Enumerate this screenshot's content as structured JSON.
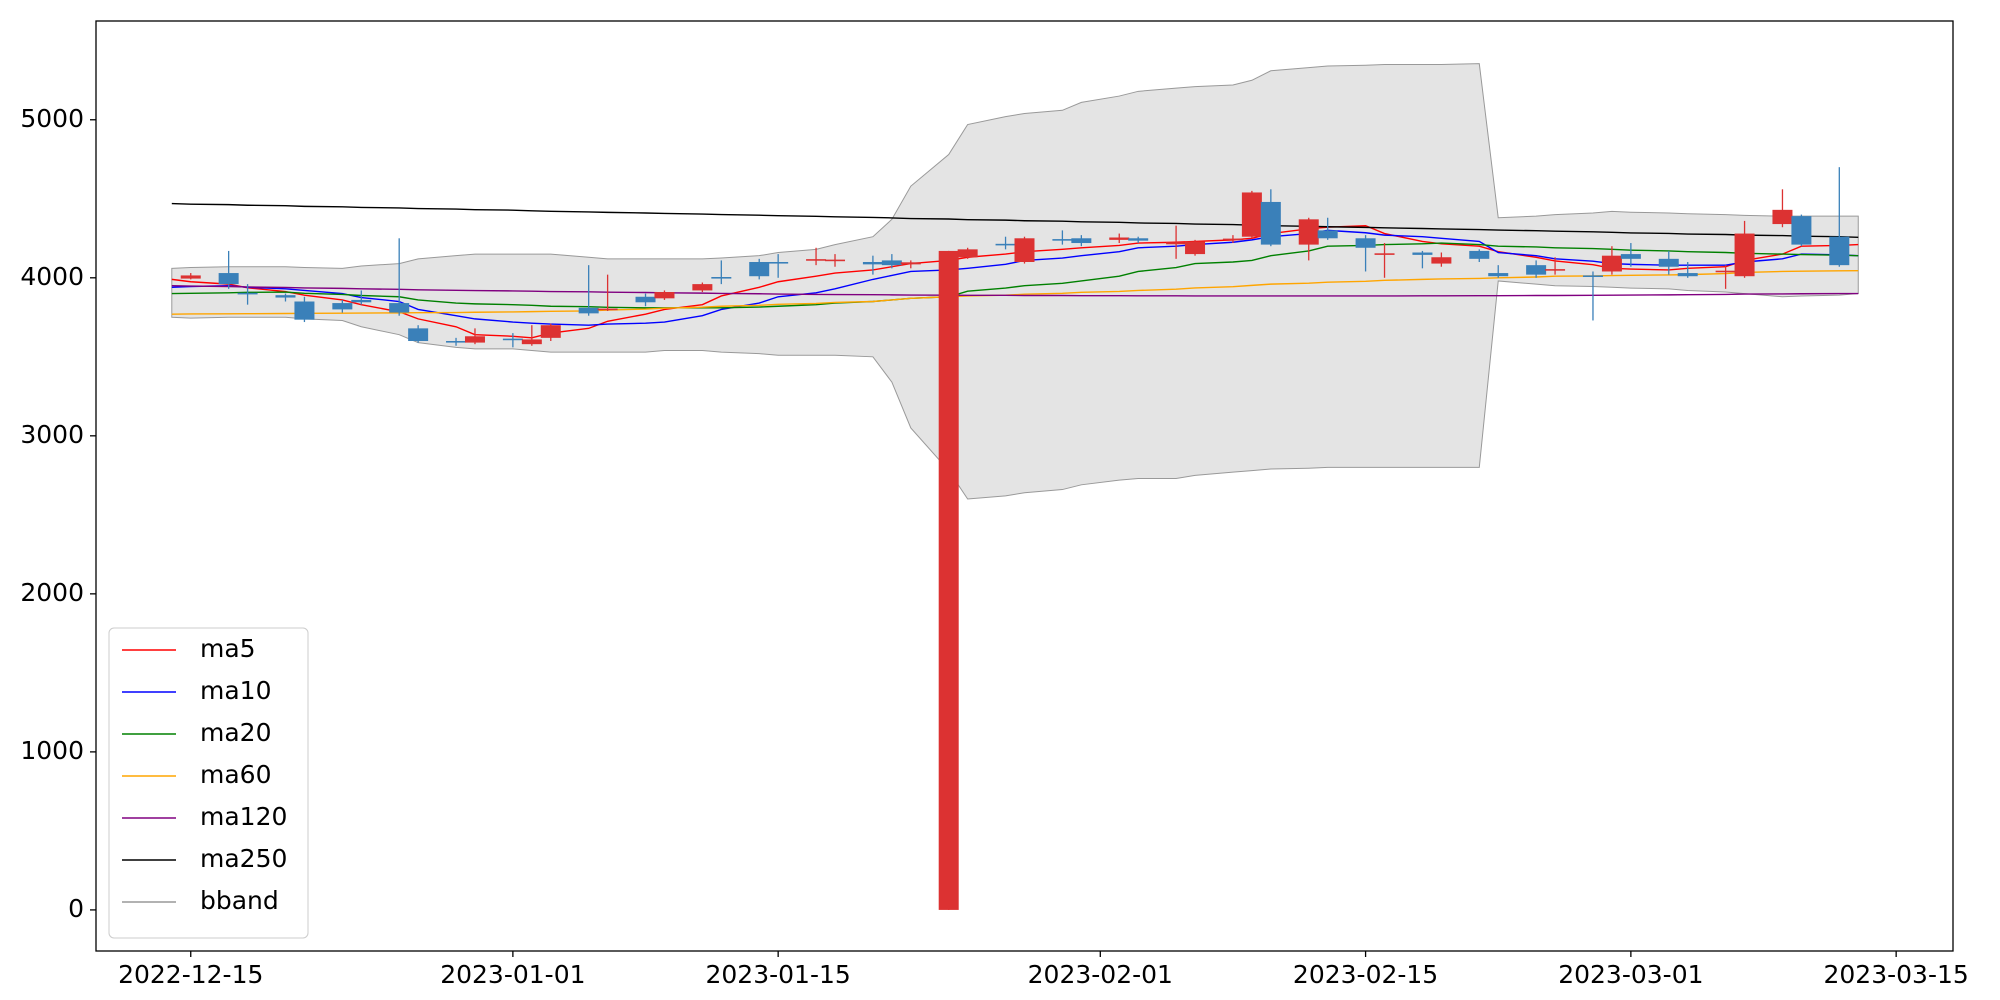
{
  "chart_data": {
    "type": "candlestick",
    "x": [
      "2022-12-14",
      "2022-12-15",
      "2022-12-17",
      "2022-12-18",
      "2022-12-20",
      "2022-12-21",
      "2022-12-23",
      "2022-12-24",
      "2022-12-26",
      "2022-12-27",
      "2022-12-29",
      "2022-12-30",
      "2023-01-01",
      "2023-01-02",
      "2023-01-03",
      "2023-01-05",
      "2023-01-06",
      "2023-01-08",
      "2023-01-09",
      "2023-01-11",
      "2023-01-12",
      "2023-01-14",
      "2023-01-15",
      "2023-01-17",
      "2023-01-18",
      "2023-01-20",
      "2023-01-21",
      "2023-01-22",
      "2023-01-24",
      "2023-01-25",
      "2023-01-27",
      "2023-01-28",
      "2023-01-30",
      "2023-01-31",
      "2023-02-02",
      "2023-02-03",
      "2023-02-05",
      "2023-02-06",
      "2023-02-08",
      "2023-02-09",
      "2023-02-10",
      "2023-02-12",
      "2023-02-13",
      "2023-02-15",
      "2023-02-16",
      "2023-02-18",
      "2023-02-19",
      "2023-02-21",
      "2023-02-22",
      "2023-02-24",
      "2023-02-25",
      "2023-02-27",
      "2023-02-28",
      "2023-03-01",
      "2023-03-03",
      "2023-03-04",
      "2023-03-06",
      "2023-03-07",
      "2023-03-09",
      "2023-03-10",
      "2023-03-12",
      "2023-03-13"
    ],
    "open": [
      null,
      3995,
      4030,
      3905,
      3890,
      3850,
      3840,
      3860,
      3840,
      3680,
      3600,
      3590,
      3615,
      3580,
      3620,
      3810,
      3795,
      3880,
      3870,
      3920,
      4005,
      4100,
      4100,
      4108,
      4105,
      4100,
      4110,
      4085,
      0,
      4130,
      4215,
      4100,
      4245,
      4250,
      4240,
      4250,
      4212,
      4150,
      4238,
      4260,
      4480,
      4210,
      4300,
      4250,
      4145,
      4160,
      4090,
      4170,
      4030,
      4080,
      4045,
      4015,
      4040,
      4150,
      4120,
      4030,
      4035,
      4010,
      4340,
      4390,
      4260,
      null
    ],
    "high": [
      null,
      4030,
      4170,
      3960,
      3900,
      3880,
      3860,
      3920,
      4250,
      3700,
      3620,
      3680,
      3650,
      3700,
      3710,
      4080,
      4020,
      3900,
      3920,
      3970,
      4110,
      4120,
      4150,
      4190,
      4150,
      4140,
      4150,
      4110,
      4170,
      4190,
      4260,
      4260,
      4300,
      4270,
      4280,
      4260,
      4330,
      4240,
      4270,
      4550,
      4560,
      4380,
      4380,
      4270,
      4220,
      4170,
      4160,
      4180,
      4080,
      4110,
      4130,
      4040,
      4200,
      4220,
      4170,
      4100,
      4080,
      4360,
      4560,
      4400,
      4700,
      null
    ],
    "low": [
      null,
      3990,
      3930,
      3830,
      3850,
      3720,
      3780,
      3830,
      3760,
      3590,
      3570,
      3580,
      3560,
      3570,
      3600,
      3760,
      3790,
      3820,
      3860,
      3910,
      3960,
      3990,
      4000,
      4080,
      4070,
      4020,
      4060,
      4060,
      0,
      4120,
      4180,
      4090,
      4210,
      4200,
      4220,
      4220,
      4120,
      4140,
      4220,
      4250,
      4200,
      4110,
      4240,
      4040,
      4000,
      4060,
      4070,
      4100,
      4000,
      4000,
      4020,
      3730,
      4020,
      4070,
      4020,
      4000,
      3930,
      4000,
      4320,
      4200,
      4070,
      null
    ],
    "close": [
      null,
      4015,
      3960,
      3895,
      3875,
      3735,
      3800,
      3845,
      3780,
      3600,
      3590,
      3630,
      3605,
      3610,
      3700,
      3775,
      3805,
      3845,
      3910,
      3960,
      3995,
      4010,
      4090,
      4118,
      4115,
      4085,
      4080,
      4098,
      4170,
      4180,
      4205,
      4250,
      4235,
      4220,
      4255,
      4235,
      4225,
      4230,
      4248,
      4540,
      4210,
      4370,
      4250,
      4190,
      4155,
      4145,
      4130,
      4120,
      4010,
      4020,
      4055,
      4005,
      4140,
      4120,
      4070,
      4010,
      4045,
      4280,
      4430,
      4210,
      4080,
      null
    ],
    "up_color": "#dc3232",
    "down_color": "#3a80b9",
    "series": [
      {
        "name": "ma5",
        "color": "#ff0000",
        "values": [
          3990,
          3975,
          3960,
          3937,
          3913,
          3890,
          3860,
          3830,
          3785,
          3740,
          3690,
          3640,
          3630,
          3620,
          3650,
          3680,
          3725,
          3770,
          3800,
          3830,
          3885,
          3940,
          3975,
          4010,
          4030,
          4050,
          4070,
          4090,
          4110,
          4130,
          4150,
          4165,
          4180,
          4190,
          4205,
          4220,
          4225,
          4230,
          4240,
          4250,
          4280,
          4310,
          4320,
          4330,
          4280,
          4230,
          4215,
          4200,
          4165,
          4130,
          4107,
          4083,
          4060,
          4055,
          4050,
          4060,
          4070,
          4110,
          4150,
          4200,
          4205,
          4210
        ]
      },
      {
        "name": "ma10",
        "color": "#0000ff",
        "values": [
          3940,
          3945,
          3950,
          3940,
          3930,
          3920,
          3900,
          3875,
          3850,
          3800,
          3760,
          3740,
          3720,
          3713,
          3707,
          3700,
          3707,
          3713,
          3720,
          3760,
          3800,
          3840,
          3880,
          3905,
          3930,
          3990,
          4015,
          4040,
          4050,
          4060,
          4085,
          4110,
          4125,
          4140,
          4165,
          4190,
          4200,
          4210,
          4225,
          4240,
          4260,
          4280,
          4300,
          4285,
          4270,
          4260,
          4250,
          4230,
          4160,
          4140,
          4120,
          4105,
          4090,
          4085,
          4080,
          4080,
          4080,
          4100,
          4120,
          4150,
          4145,
          4140
        ]
      },
      {
        "name": "ma20",
        "color": "#008000",
        "values": [
          3900,
          3902,
          3905,
          3908,
          3910,
          3902,
          3895,
          3888,
          3880,
          3860,
          3840,
          3835,
          3830,
          3826,
          3820,
          3817,
          3813,
          3810,
          3810,
          3810,
          3810,
          3815,
          3820,
          3830,
          3840,
          3850,
          3860,
          3870,
          3880,
          3915,
          3935,
          3950,
          3965,
          3980,
          4010,
          4040,
          4065,
          4090,
          4100,
          4110,
          4140,
          4170,
          4200,
          4205,
          4210,
          4215,
          4220,
          4210,
          4200,
          4195,
          4190,
          4185,
          4180,
          4175,
          4170,
          4165,
          4160,
          4155,
          4150,
          4147,
          4143,
          4140
        ]
      },
      {
        "name": "ma60",
        "color": "#ffa500",
        "values": [
          3770,
          3771,
          3772,
          3773,
          3774,
          3775,
          3776,
          3777,
          3778,
          3779,
          3780,
          3782,
          3784,
          3786,
          3788,
          3790,
          3796,
          3802,
          3808,
          3814,
          3820,
          3826,
          3832,
          3838,
          3844,
          3850,
          3860,
          3870,
          3880,
          3885,
          3890,
          3896,
          3902,
          3908,
          3914,
          3920,
          3928,
          3936,
          3944,
          3952,
          3960,
          3966,
          3972,
          3978,
          3984,
          3990,
          3993,
          3996,
          4000,
          4005,
          4010,
          4012,
          4014,
          4016,
          4018,
          4020,
          4027,
          4034,
          4040,
          4042,
          4044,
          4045
        ]
      },
      {
        "name": "ma120",
        "color": "#800080",
        "values": [
          3950,
          3948,
          3945,
          3942,
          3939,
          3936,
          3933,
          3930,
          3927,
          3924,
          3921,
          3919,
          3917,
          3915,
          3913,
          3911,
          3909,
          3907,
          3905,
          3903,
          3901,
          3899,
          3897,
          3895,
          3894,
          3893,
          3892,
          3891,
          3890,
          3889,
          3889,
          3888,
          3888,
          3887,
          3887,
          3886,
          3886,
          3885,
          3885,
          3885,
          3885,
          3885,
          3885,
          3885,
          3885,
          3886,
          3886,
          3887,
          3887,
          3888,
          3888,
          3889,
          3890,
          3891,
          3892,
          3893,
          3895,
          3897,
          3898,
          3899,
          3900,
          3900
        ]
      },
      {
        "name": "ma250",
        "color": "#000000",
        "values": [
          4470,
          4466,
          4463,
          4459,
          4456,
          4452,
          4449,
          4445,
          4442,
          4438,
          4435,
          4431,
          4428,
          4424,
          4421,
          4417,
          4414,
          4410,
          4407,
          4403,
          4400,
          4396,
          4393,
          4389,
          4386,
          4382,
          4379,
          4375,
          4372,
          4368,
          4365,
          4361,
          4358,
          4354,
          4351,
          4347,
          4344,
          4340,
          4337,
          4333,
          4330,
          4326,
          4323,
          4319,
          4316,
          4312,
          4309,
          4305,
          4302,
          4298,
          4295,
          4291,
          4288,
          4284,
          4281,
          4277,
          4274,
          4270,
          4267,
          4263,
          4260,
          4256
        ]
      }
    ],
    "band": {
      "name": "bband",
      "color": "#999999",
      "fill": "#e4e4e4",
      "upper": [
        4060,
        4065,
        4070,
        4070,
        4070,
        4065,
        4060,
        4075,
        4090,
        4120,
        4140,
        4150,
        4150,
        4150,
        4150,
        4130,
        4120,
        4120,
        4120,
        4120,
        4125,
        4140,
        4160,
        4180,
        4210,
        4260,
        4370,
        4580,
        4780,
        4970,
        5020,
        5040,
        5060,
        5110,
        5150,
        5180,
        5200,
        5210,
        5220,
        5250,
        5310,
        5330,
        5340,
        5345,
        5350,
        5350,
        5350,
        5355,
        4380,
        4390,
        4400,
        4410,
        4420,
        4415,
        4410,
        4405,
        4400,
        4395,
        4390,
        4390,
        4390,
        4390
      ],
      "lower": [
        3750,
        3745,
        3750,
        3750,
        3750,
        3740,
        3730,
        3690,
        3640,
        3590,
        3560,
        3550,
        3550,
        3540,
        3530,
        3530,
        3530,
        3530,
        3540,
        3540,
        3530,
        3520,
        3510,
        3510,
        3510,
        3500,
        3340,
        3050,
        2780,
        2600,
        2620,
        2640,
        2660,
        2690,
        2720,
        2730,
        2730,
        2750,
        2770,
        2780,
        2790,
        2795,
        2800,
        2800,
        2800,
        2800,
        2800,
        2800,
        3980,
        3960,
        3950,
        3945,
        3940,
        3935,
        3930,
        3920,
        3910,
        3900,
        3880,
        3885,
        3890,
        3900
      ]
    },
    "xlim": [
      "2022-12-10",
      "2023-03-18"
    ],
    "xticks": [
      "2022-12-15",
      "2023-01-01",
      "2023-01-15",
      "2023-02-01",
      "2023-02-15",
      "2023-03-01",
      "2023-03-15"
    ],
    "ylim": [
      -260,
      5625
    ],
    "yticks": [
      0,
      1000,
      2000,
      3000,
      4000,
      5000
    ],
    "legend": "lower left"
  }
}
